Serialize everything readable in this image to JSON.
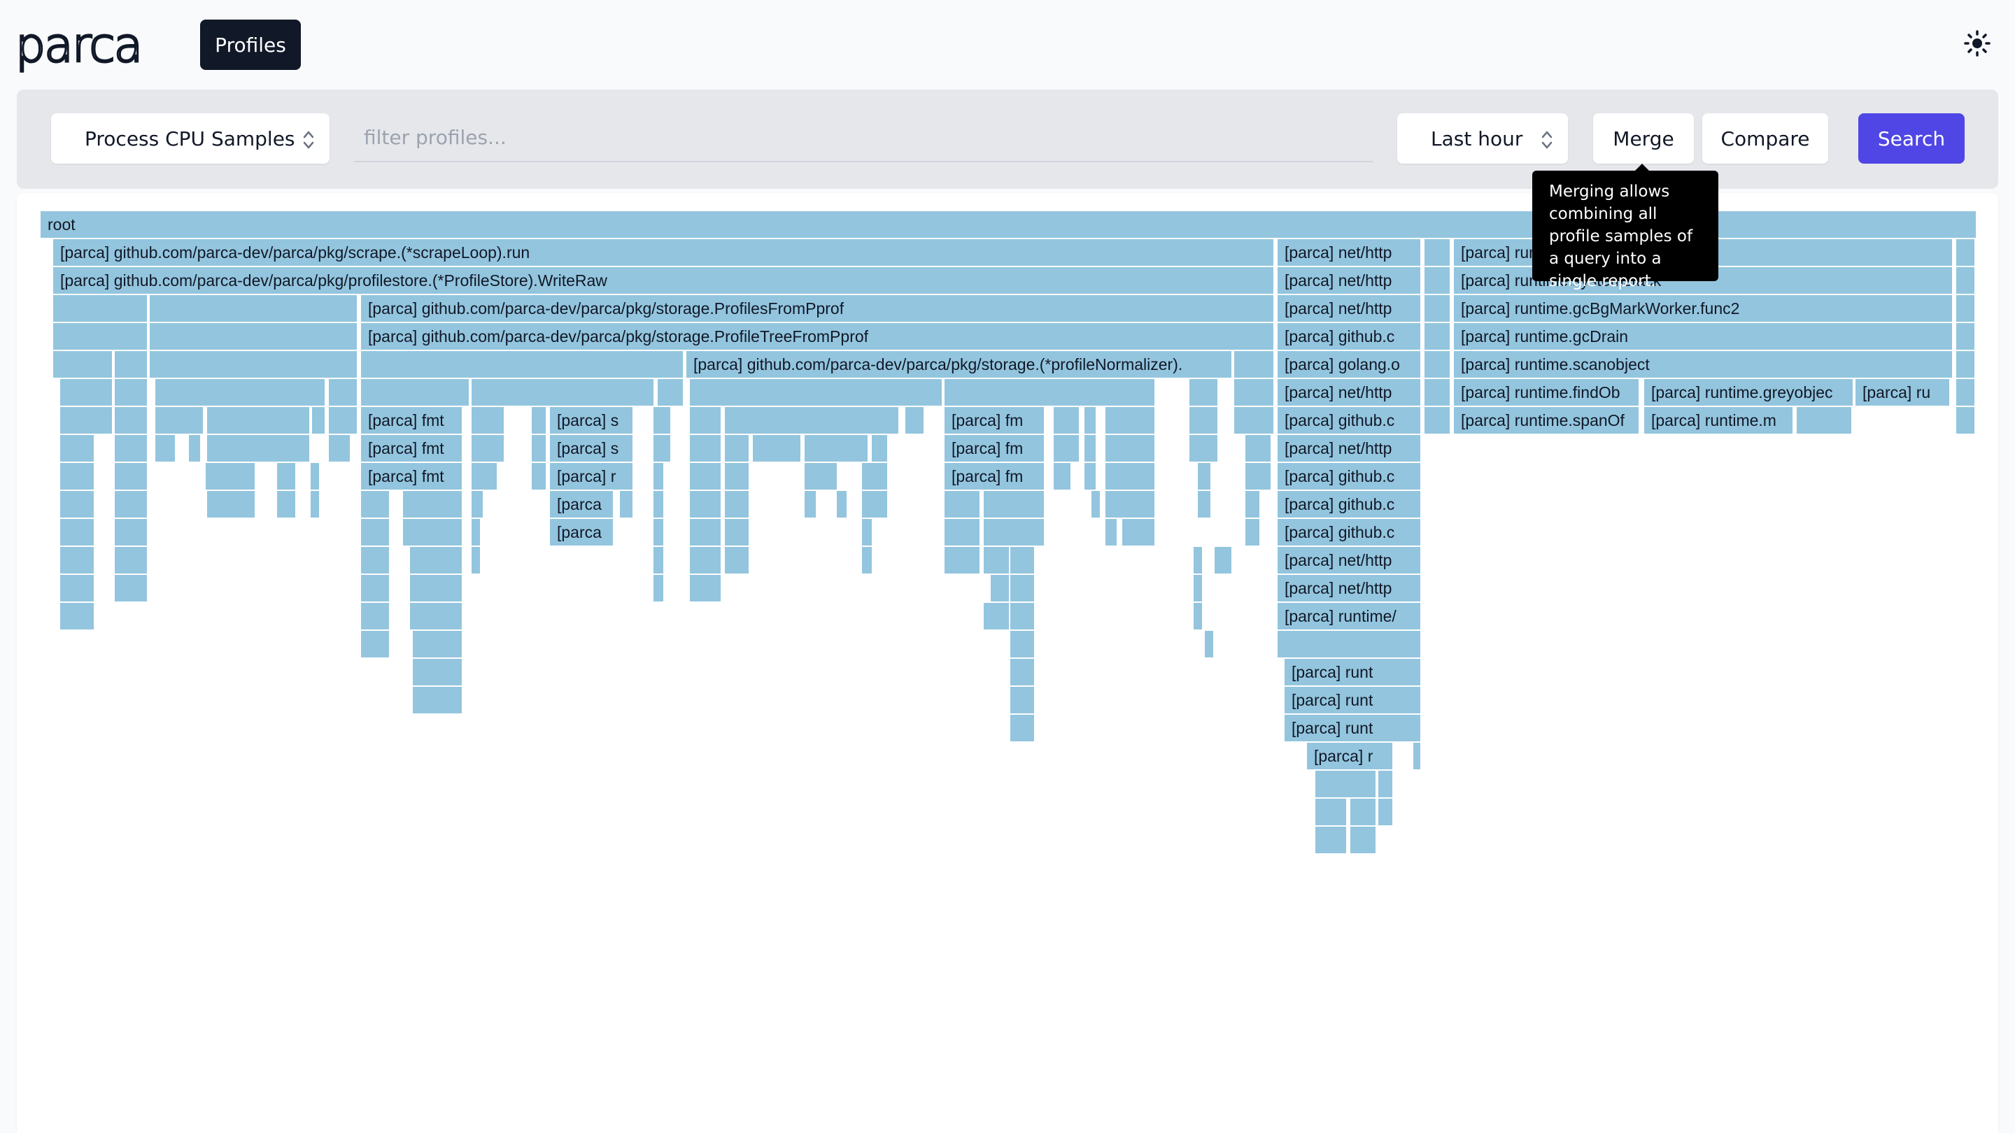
{
  "app": {
    "logo_text": "parca",
    "nav": {
      "profiles_label": "Profiles"
    },
    "theme_icon": "sun-icon"
  },
  "toolbar": {
    "profile_type": "Process CPU Samples",
    "filter_placeholder": "filter profiles...",
    "time_range": "Last hour",
    "merge_label": "Merge",
    "compare_label": "Compare",
    "search_label": "Search"
  },
  "tooltip": {
    "text": "Merging allows combining all profile samples of a query into a single report."
  },
  "colors": {
    "frame": "#93c5de",
    "accent": "#4f46e5",
    "nav_bg": "#111827"
  },
  "flamegraph": {
    "type": "icicle",
    "labeled_frames": [
      "root",
      "[parca] github.com/parca-dev/parca/pkg/scrape.(*scrapeLoop).run",
      "[parca] github.com/parca-dev/parca/pkg/profilestore.(*ProfileStore).WriteRaw",
      "[parca] github.com/parca-dev/parca/pkg/storage.ProfilesFromPprof",
      "[parca] github.com/parca-dev/parca/pkg/storage.ProfileTreeFromPprof",
      "[parca] github.com/parca-dev/parca/pkg/storage.(*profileNormalizer).n",
      "[parca] net/http.(",
      "[parca] net/http.s",
      "[parca] net/http.H",
      "[parca] github.co",
      "[parca] golang.or",
      "[parca] net/http/p",
      "[parca] runtime/p",
      "[parca] runt",
      "[parca] run",
      "[parca] runtime.systemstack",
      "[parca] runtime.gcBgMarkWorker.func2",
      "[parca] runtime.gcDrain",
      "[parca] runtime.scanobject",
      "[parca] runtime.findObje",
      "[parca] runtime.greyobject",
      "[parca] runtime.spanOf",
      "[parca] runtime.ma",
      "[parca] fmt.S",
      "[parca] fmt.",
      "[parca] fm",
      "[parca] st",
      "[parca] ru",
      "[parca]"
    ]
  }
}
